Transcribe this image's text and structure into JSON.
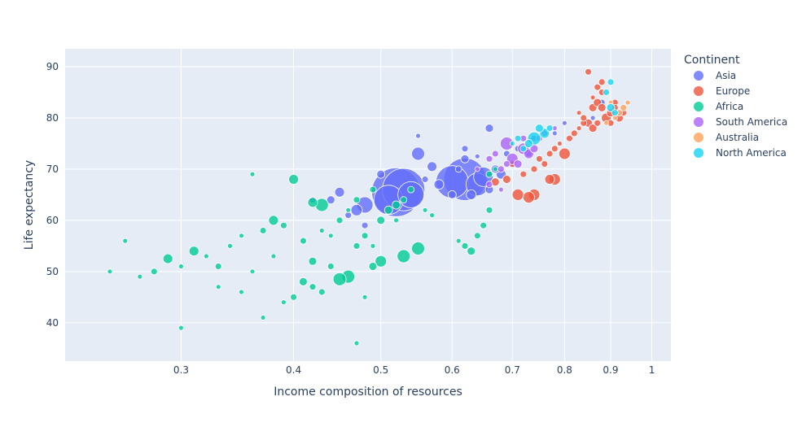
{
  "chart_data": {
    "type": "scatter",
    "xlabel": "Income composition of resources",
    "ylabel": "Life expectancy",
    "x_scale": "log",
    "xlim": [
      0.223,
      1.05
    ],
    "ylim": [
      32.5,
      93.5
    ],
    "x_ticks": [
      0.3,
      0.4,
      0.5,
      0.6,
      0.7,
      0.8,
      0.9,
      1
    ],
    "x_tick_labels": [
      "0.3",
      "0.4",
      "0.5",
      "0.6",
      "0.7",
      "0.8",
      "0.9",
      "1"
    ],
    "y_ticks": [
      40,
      50,
      60,
      70,
      80,
      90
    ],
    "y_tick_labels": [
      "40",
      "50",
      "60",
      "70",
      "80",
      "90"
    ],
    "grid": true,
    "legend": {
      "title": "Continent",
      "placement": "right"
    },
    "series": [
      {
        "name": "Asia",
        "color": "#636efa",
        "points": [
          [
            0.52,
            65.5,
            30
          ],
          [
            0.53,
            66,
            26
          ],
          [
            0.51,
            64,
            18
          ],
          [
            0.54,
            65,
            16
          ],
          [
            0.62,
            68,
            26
          ],
          [
            0.6,
            67.5,
            20
          ],
          [
            0.64,
            67,
            14
          ],
          [
            0.65,
            68.5,
            12
          ],
          [
            0.55,
            73,
            8
          ],
          [
            0.66,
            78,
            5
          ],
          [
            0.48,
            63,
            10
          ],
          [
            0.47,
            62,
            7
          ],
          [
            0.45,
            65.5,
            6
          ],
          [
            0.57,
            70.5,
            6
          ],
          [
            0.62,
            72,
            5
          ],
          [
            0.68,
            69,
            6
          ],
          [
            0.7,
            71,
            5
          ],
          [
            0.63,
            65,
            6
          ],
          [
            0.44,
            64,
            5
          ],
          [
            0.5,
            69,
            5
          ],
          [
            0.58,
            67,
            6
          ],
          [
            0.67,
            70,
            5
          ],
          [
            0.71,
            74,
            4
          ],
          [
            0.73,
            73,
            4
          ],
          [
            0.42,
            64,
            4
          ],
          [
            0.46,
            61,
            4
          ],
          [
            0.55,
            76.5,
            3
          ],
          [
            0.62,
            74,
            4
          ],
          [
            0.69,
            73,
            4
          ],
          [
            0.74,
            76,
            4
          ],
          [
            0.88,
            83,
            4
          ],
          [
            0.86,
            80,
            3
          ],
          [
            0.78,
            77,
            3
          ],
          [
            0.8,
            79,
            3
          ],
          [
            0.6,
            65,
            5
          ],
          [
            0.66,
            66,
            5
          ],
          [
            0.48,
            59,
            4
          ],
          [
            0.61,
            70,
            4
          ],
          [
            0.64,
            72.5,
            3
          ],
          [
            0.56,
            68,
            4
          ]
        ]
      },
      {
        "name": "Europe",
        "color": "#EF553B",
        "points": [
          [
            0.85,
            89,
            4
          ],
          [
            0.87,
            86,
            4
          ],
          [
            0.88,
            87,
            4
          ],
          [
            0.86,
            82,
            5
          ],
          [
            0.87,
            83,
            5
          ],
          [
            0.88,
            82,
            5
          ],
          [
            0.89,
            80,
            6
          ],
          [
            0.9,
            81,
            5
          ],
          [
            0.91,
            83,
            4
          ],
          [
            0.93,
            81,
            4
          ],
          [
            0.92,
            80,
            5
          ],
          [
            0.84,
            79,
            4
          ],
          [
            0.85,
            79,
            5
          ],
          [
            0.86,
            78,
            5
          ],
          [
            0.84,
            80,
            4
          ],
          [
            0.83,
            81,
            3
          ],
          [
            0.82,
            77,
            4
          ],
          [
            0.8,
            73,
            7
          ],
          [
            0.78,
            68,
            7
          ],
          [
            0.77,
            68,
            6
          ],
          [
            0.74,
            65,
            7
          ],
          [
            0.73,
            64.5,
            7
          ],
          [
            0.71,
            65,
            7
          ],
          [
            0.67,
            67.5,
            5
          ],
          [
            0.69,
            68,
            5
          ],
          [
            0.72,
            69,
            4
          ],
          [
            0.74,
            70,
            4
          ],
          [
            0.76,
            71,
            4
          ],
          [
            0.75,
            72,
            4
          ],
          [
            0.77,
            73,
            4
          ],
          [
            0.78,
            74,
            4
          ],
          [
            0.79,
            75,
            3
          ],
          [
            0.81,
            76,
            4
          ],
          [
            0.83,
            78,
            3
          ],
          [
            0.87,
            79,
            4
          ],
          [
            0.9,
            79,
            4
          ],
          [
            0.88,
            85,
            4
          ],
          [
            0.91,
            82,
            4
          ],
          [
            0.86,
            84,
            3
          ],
          [
            0.7,
            71,
            4
          ]
        ]
      },
      {
        "name": "Africa",
        "color": "#00cc96",
        "points": [
          [
            0.55,
            54.5,
            8
          ],
          [
            0.53,
            53,
            8
          ],
          [
            0.5,
            52,
            7
          ],
          [
            0.49,
            51,
            5
          ],
          [
            0.46,
            49,
            8
          ],
          [
            0.45,
            48.5,
            8
          ],
          [
            0.43,
            46,
            4
          ],
          [
            0.42,
            47,
            4
          ],
          [
            0.41,
            48,
            5
          ],
          [
            0.4,
            45,
            4
          ],
          [
            0.39,
            44,
            3
          ],
          [
            0.42,
            52,
            5
          ],
          [
            0.44,
            51,
            4
          ],
          [
            0.47,
            55,
            4
          ],
          [
            0.48,
            57,
            4
          ],
          [
            0.49,
            55,
            3
          ],
          [
            0.5,
            60,
            5
          ],
          [
            0.51,
            62,
            5
          ],
          [
            0.52,
            63,
            5
          ],
          [
            0.53,
            64,
            4
          ],
          [
            0.54,
            66,
            4
          ],
          [
            0.43,
            63,
            8
          ],
          [
            0.42,
            63.5,
            6
          ],
          [
            0.38,
            60,
            6
          ],
          [
            0.37,
            58,
            4
          ],
          [
            0.35,
            57,
            3
          ],
          [
            0.34,
            55,
            3
          ],
          [
            0.33,
            51,
            4
          ],
          [
            0.32,
            53,
            3
          ],
          [
            0.31,
            54,
            6
          ],
          [
            0.3,
            51,
            3
          ],
          [
            0.29,
            52.5,
            6
          ],
          [
            0.28,
            50,
            4
          ],
          [
            0.27,
            49,
            3
          ],
          [
            0.26,
            56,
            3
          ],
          [
            0.25,
            50,
            3
          ],
          [
            0.4,
            68,
            6
          ],
          [
            0.36,
            69,
            3
          ],
          [
            0.49,
            66,
            4
          ],
          [
            0.47,
            64,
            4
          ],
          [
            0.45,
            60,
            4
          ],
          [
            0.41,
            56,
            4
          ],
          [
            0.39,
            59,
            4
          ],
          [
            0.44,
            57,
            3
          ],
          [
            0.46,
            62,
            3
          ],
          [
            0.63,
            54,
            5
          ],
          [
            0.64,
            57,
            4
          ],
          [
            0.65,
            59,
            4
          ],
          [
            0.66,
            62,
            4
          ],
          [
            0.62,
            55,
            4
          ],
          [
            0.61,
            56,
            3
          ],
          [
            0.66,
            69,
            4
          ],
          [
            0.67,
            70,
            3
          ],
          [
            0.48,
            45,
            3
          ],
          [
            0.36,
            50,
            3
          ],
          [
            0.35,
            46,
            3
          ],
          [
            0.47,
            36,
            3
          ],
          [
            0.3,
            39,
            3
          ],
          [
            0.37,
            41,
            3
          ],
          [
            0.43,
            58,
            3
          ],
          [
            0.52,
            60,
            3
          ],
          [
            0.56,
            62,
            3
          ],
          [
            0.57,
            61,
            3
          ],
          [
            0.38,
            53,
            3
          ],
          [
            0.33,
            47,
            3
          ]
        ]
      },
      {
        "name": "South America",
        "color": "#ab63fa",
        "points": [
          [
            0.69,
            75,
            8
          ],
          [
            0.72,
            74,
            7
          ],
          [
            0.7,
            72,
            7
          ],
          [
            0.73,
            73,
            6
          ],
          [
            0.74,
            74,
            5
          ],
          [
            0.71,
            71,
            5
          ],
          [
            0.67,
            73,
            4
          ],
          [
            0.66,
            72,
            4
          ],
          [
            0.68,
            70,
            4
          ],
          [
            0.75,
            76,
            4
          ],
          [
            0.76,
            77,
            4
          ],
          [
            0.78,
            78,
            3
          ],
          [
            0.72,
            76,
            4
          ],
          [
            0.69,
            71,
            4
          ],
          [
            0.64,
            70,
            3
          ],
          [
            0.66,
            67,
            4
          ],
          [
            0.68,
            66,
            3
          ]
        ]
      },
      {
        "name": "Australia",
        "color": "#FFA15A",
        "points": [
          [
            0.93,
            82,
            4
          ],
          [
            0.92,
            81,
            4
          ],
          [
            0.94,
            83,
            3
          ],
          [
            0.91,
            80,
            3
          ],
          [
            0.89,
            79,
            3
          ],
          [
            0.9,
            83,
            3
          ]
        ]
      },
      {
        "name": "North America",
        "color": "#19d3f3",
        "points": [
          [
            0.74,
            76,
            8
          ],
          [
            0.76,
            77,
            6
          ],
          [
            0.73,
            75,
            5
          ],
          [
            0.75,
            78,
            5
          ],
          [
            0.77,
            78,
            4
          ],
          [
            0.71,
            76,
            4
          ],
          [
            0.9,
            82,
            5
          ],
          [
            0.91,
            81,
            4
          ],
          [
            0.89,
            85,
            4
          ],
          [
            0.9,
            87,
            4
          ],
          [
            0.72,
            74,
            4
          ],
          [
            0.7,
            75,
            3
          ]
        ]
      }
    ]
  }
}
